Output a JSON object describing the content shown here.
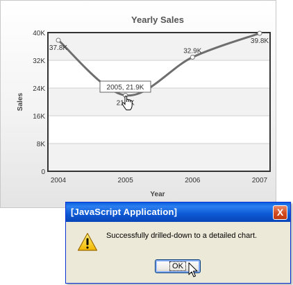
{
  "chart_data": {
    "type": "line",
    "title": "Yearly Sales",
    "xlabel": "Year",
    "ylabel": "Sales",
    "categories": [
      "2004",
      "2005",
      "2006",
      "2007"
    ],
    "values": [
      37.8,
      21.9,
      32.9,
      39.8
    ],
    "value_labels": [
      "37.8K",
      "21.9K",
      "32.9K",
      "39.8K"
    ],
    "ylim": [
      0,
      40
    ],
    "yticks": [
      0,
      8,
      16,
      24,
      32,
      40
    ],
    "ytick_labels": [
      "0",
      "8K",
      "16K",
      "24K",
      "32K",
      "40K"
    ],
    "grid": true,
    "line_color": "#6e6e6e",
    "tooltip": "2005, 21.9K"
  },
  "dialog": {
    "title": "[JavaScript Application]",
    "close_label": "X",
    "icon": "warning-icon",
    "message": "Successfully drilled-down to a detailed chart.",
    "ok_label": "OK"
  },
  "cursors": [
    "hand-cursor",
    "arrow-cursor"
  ]
}
